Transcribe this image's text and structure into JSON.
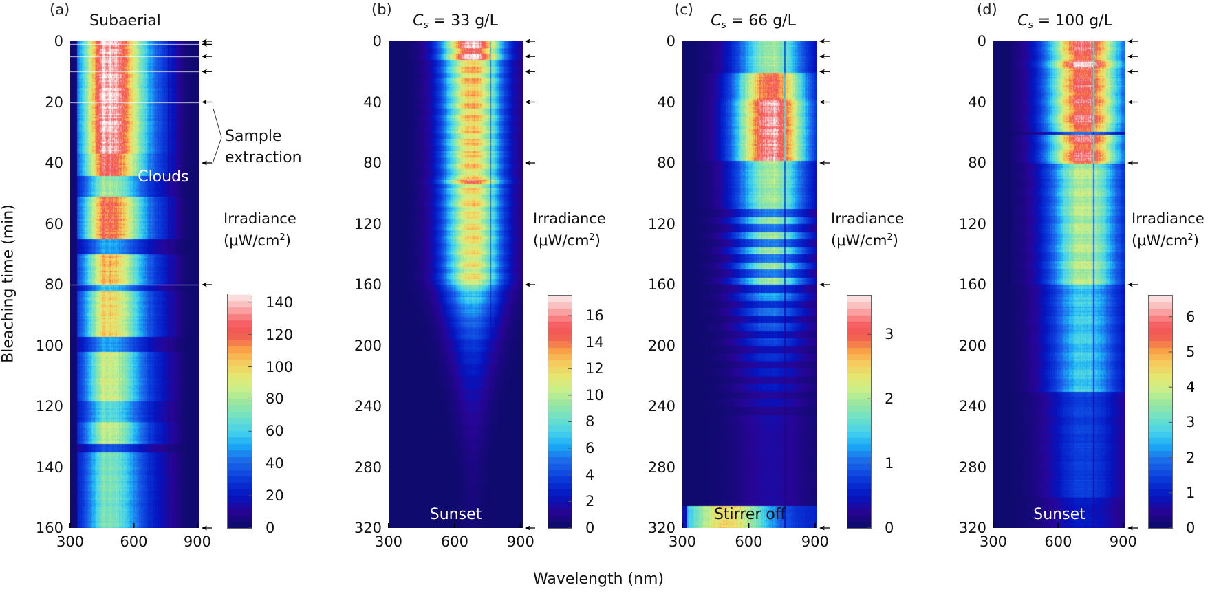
{
  "figure": {
    "xlabel": "Wavelength (nm)",
    "ylabel": "Bleaching time (min)",
    "colorbar_title_line1": "Irradiance",
    "colorbar_title_line2_prefix": "(μW/cm",
    "colorbar_title_line2_sup": "2",
    "colorbar_title_line2_suffix": ")"
  },
  "chart_data": [
    {
      "type": "heatmap",
      "panel_label": "(a)",
      "title": "Subaerial",
      "title_parts": null,
      "xlabel": "Wavelength (nm)",
      "ylabel": "Bleaching time (min)",
      "x_range": [
        300,
        910
      ],
      "x_ticks": [
        300,
        600,
        900
      ],
      "y_range": [
        0,
        160
      ],
      "y_ticks": [
        0,
        20,
        40,
        60,
        80,
        100,
        120,
        140,
        160
      ],
      "y_inverted": true,
      "colorbar": {
        "range": [
          0,
          145
        ],
        "ticks": [
          0,
          20,
          40,
          60,
          80,
          100,
          120,
          140
        ],
        "label": "Irradiance (μW/cm2)",
        "colormap": "jet-like"
      },
      "sample_extraction_times": [
        0,
        1,
        5,
        10,
        20,
        40,
        80,
        160
      ],
      "annotations": [
        {
          "text": "Sample extraction",
          "type": "bracket-label",
          "points_to_times": [
            20,
            40
          ]
        },
        {
          "text": "Clouds",
          "at_time": 45,
          "color": "white"
        }
      ],
      "description": "Broad maximum ~450-520 nm (up to ~140) during 0-40 min, cloud dips ~40-50, 65, 100, 120, 133 min; spectrum spans ~330-900 nm"
    },
    {
      "type": "heatmap",
      "panel_label": "(b)",
      "title": "Cs = 33 g/L",
      "title_parts": {
        "sym": "C",
        "sub": "s",
        "rest": " = 33 g/L"
      },
      "x_range": [
        300,
        910
      ],
      "x_ticks": [
        300,
        600,
        900
      ],
      "y_range": [
        0,
        320
      ],
      "y_ticks": [
        0,
        40,
        80,
        120,
        160,
        200,
        240,
        280,
        320
      ],
      "y_inverted": true,
      "colorbar": {
        "range": [
          0,
          17.5
        ],
        "ticks": [
          0,
          2,
          4,
          6,
          8,
          10,
          12,
          14,
          16
        ],
        "label": "Irradiance (μW/cm2)",
        "colormap": "jet-like"
      },
      "sample_extraction_times": [
        0,
        10,
        20,
        40,
        80,
        160,
        320
      ],
      "annotations": [
        {
          "text": "Sunset",
          "at_time": 312,
          "color": "white"
        }
      ],
      "description": "Peak ~650-720 nm, max ~16 near 0-5 min, decaying after 160 min to ~0 by 290 min"
    },
    {
      "type": "heatmap",
      "panel_label": "(c)",
      "title": "Cs = 66 g/L",
      "title_parts": {
        "sym": "C",
        "sub": "s",
        "rest": " = 66 g/L"
      },
      "x_range": [
        300,
        910
      ],
      "x_ticks": [
        300,
        600,
        900
      ],
      "y_range": [
        0,
        320
      ],
      "y_ticks": [
        0,
        40,
        80,
        120,
        160,
        200,
        240,
        280,
        320
      ],
      "y_inverted": true,
      "colorbar": {
        "range": [
          0,
          3.6
        ],
        "ticks": [
          0,
          1,
          2,
          3
        ],
        "label": "Irradiance (μW/cm2)",
        "colormap": "jet-like"
      },
      "sample_extraction_times": [
        0,
        10,
        20,
        40,
        80,
        160,
        320
      ],
      "annotations": [
        {
          "text": "Stirrer off",
          "at_time": 312,
          "color": "dark"
        }
      ],
      "description": "Peak ~680-720 nm, max ~3.4 between 40-78 min; banded decay after 80 min; stirrer off at ~305 min raises irradiance broadly"
    },
    {
      "type": "heatmap",
      "panel_label": "(d)",
      "title": "Cs = 100 g/L",
      "title_parts": {
        "sym": "C",
        "sub": "s",
        "rest": " = 100 g/L"
      },
      "x_range": [
        300,
        910
      ],
      "x_ticks": [
        300,
        600,
        900
      ],
      "y_range": [
        0,
        320
      ],
      "y_ticks": [
        0,
        40,
        80,
        120,
        160,
        200,
        240,
        280,
        320
      ],
      "y_inverted": true,
      "colorbar": {
        "range": [
          0,
          6.6
        ],
        "ticks": [
          0,
          1,
          2,
          3,
          4,
          5,
          6
        ],
        "label": "Irradiance (μW/cm2)",
        "colormap": "jet-like"
      },
      "sample_extraction_times": [
        0,
        10,
        20,
        40,
        80,
        160,
        320
      ],
      "annotations": [
        {
          "text": "Sunset",
          "at_time": 312,
          "color": "white"
        }
      ],
      "description": "Peak ~680-760 nm, max ~6.3 near 15 min; strong 0-80 min, moderate 80-160 min, weak after 230 min"
    }
  ]
}
